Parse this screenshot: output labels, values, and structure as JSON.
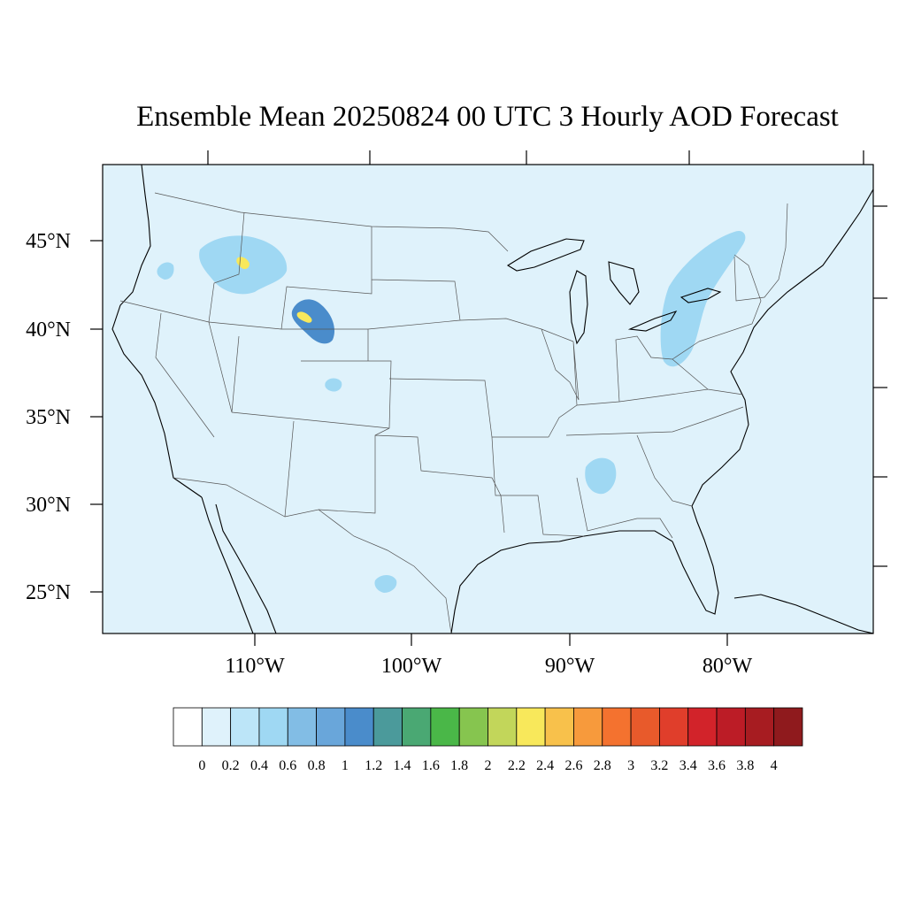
{
  "title": "Ensemble Mean 20250824 00 UTC 3 Hourly AOD Forecast",
  "map": {
    "background_color": "#dff2fb",
    "lon_labels": [
      "110°W",
      "100°W",
      "90°W",
      "80°W"
    ],
    "lat_labels": [
      "45°N",
      "40°N",
      "35°N",
      "30°N",
      "25°N"
    ],
    "field_regions": [
      {
        "name": "western-montana-idaho-smoke",
        "level": 0.4
      },
      {
        "name": "yellowstone-fire-core",
        "level": 2.2
      },
      {
        "name": "southern-wyoming-fire-plume",
        "level": 1.2
      },
      {
        "name": "wyoming-fire-core",
        "level": 2.4
      },
      {
        "name": "central-oregon-smoke",
        "level": 0.4
      },
      {
        "name": "colorado-smoke-patch",
        "level": 0.4
      },
      {
        "name": "great-lakes-ohio-valley-smoke",
        "level": 0.4
      },
      {
        "name": "alabama-smoke-patch",
        "level": 0.4
      },
      {
        "name": "gulf-of-mexico-patch",
        "level": 0.4
      }
    ]
  },
  "colorbar": {
    "colors": [
      "#ffffff",
      "#dff2fb",
      "#bce5f8",
      "#9fd8f3",
      "#82bde5",
      "#69a6da",
      "#4a8ccb",
      "#4b9a9b",
      "#4aa873",
      "#4ab748",
      "#86c54f",
      "#c2d65a",
      "#f8e85b",
      "#f8c14b",
      "#f79a3c",
      "#f4722f",
      "#e85a2b",
      "#e03e2b",
      "#d2232a",
      "#bc1c26",
      "#a71c21",
      "#8f1a1d"
    ],
    "labels": [
      "0",
      "0.2",
      "0.4",
      "0.6",
      "0.8",
      "1",
      "1.2",
      "1.4",
      "1.6",
      "1.8",
      "2",
      "2.2",
      "2.4",
      "2.6",
      "2.8",
      "3",
      "3.2",
      "3.4",
      "3.6",
      "3.8",
      "4"
    ]
  }
}
